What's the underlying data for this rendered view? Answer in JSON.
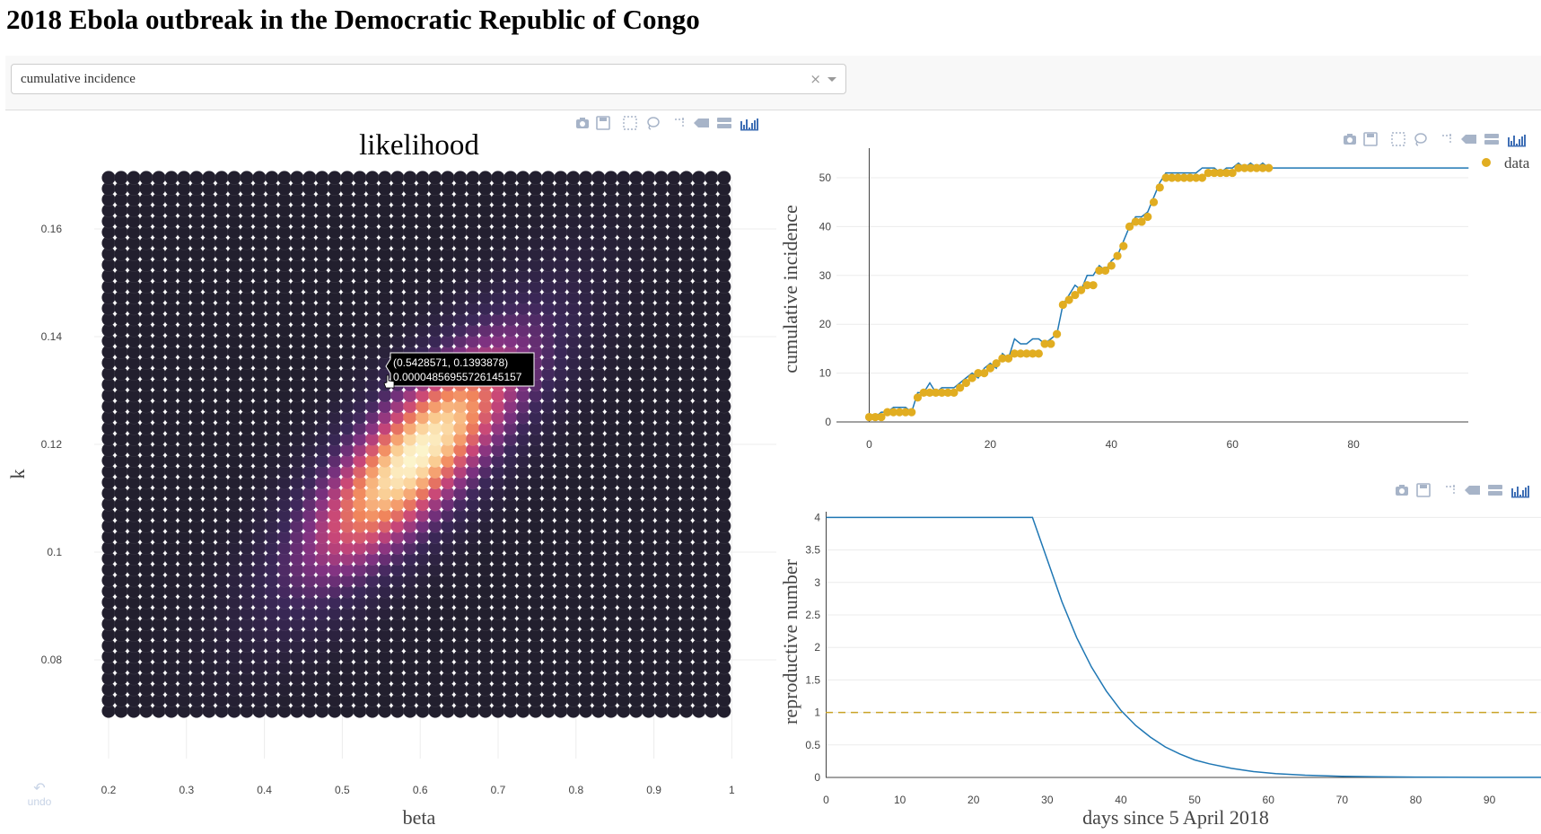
{
  "page": {
    "title": "2018 Ebola outbreak in the Democratic Republic of Congo"
  },
  "dropdown": {
    "value": "cumulative incidence",
    "clear_icon": "clear-icon",
    "arrow_icon": "caret-down-icon"
  },
  "modebar": {
    "icons": [
      "camera-icon",
      "save-icon",
      "box-select-icon",
      "lasso-icon",
      "spike-lines-icon",
      "hover-closest-icon",
      "hover-compare-icon",
      "plotly-logo-icon"
    ]
  },
  "undo": {
    "label": "undo",
    "icon": "undo-icon"
  },
  "colors": {
    "accent_line": "#1f77b4",
    "data_points": "#e1ad21",
    "threshold": "#c9a227",
    "heatmap_low": "#221f2e",
    "heatmap_high": "#fbf3c8"
  },
  "chart_data": [
    {
      "type": "heatmap",
      "title": "likelihood",
      "xlabel": "beta",
      "ylabel": "k",
      "xlim": [
        0.2,
        1
      ],
      "ylim": [
        0.07,
        0.17
      ],
      "x_ticks": [
        "0.2",
        "0.3",
        "0.4",
        "0.5",
        "0.6",
        "0.7",
        "0.8",
        "0.9",
        "1"
      ],
      "y_ticks": [
        "0.08",
        "0.1",
        "0.12",
        "0.14",
        "0.16"
      ],
      "peak": {
        "beta": 0.595,
        "k": 0.118
      },
      "hover": {
        "line1": "(0.5428571, 0.1393878)",
        "line2": "0.00004856955726145157"
      }
    },
    {
      "type": "line",
      "xlabel": "",
      "ylabel": "cumulative incidence",
      "xlim": [
        -5,
        99
      ],
      "ylim": [
        0,
        55
      ],
      "x_ticks": [
        "0",
        "20",
        "40",
        "60",
        "80"
      ],
      "y_ticks": [
        "0",
        "10",
        "20",
        "30",
        "40",
        "50"
      ],
      "legend": {
        "position": "top-right",
        "entries": [
          "data"
        ]
      },
      "series": [
        {
          "name": "data",
          "kind": "scatter",
          "x": [
            0,
            1,
            2,
            3,
            4,
            5,
            6,
            7,
            8,
            9,
            10,
            11,
            12,
            13,
            14,
            15,
            16,
            17,
            18,
            19,
            20,
            21,
            22,
            23,
            24,
            25,
            26,
            27,
            28,
            29,
            30,
            31,
            32,
            33,
            34,
            35,
            36,
            37,
            38,
            39,
            40,
            41,
            42,
            43,
            44,
            45,
            46,
            47,
            48,
            49,
            50,
            51,
            52,
            53,
            54,
            55,
            56,
            57,
            58,
            59,
            60,
            61,
            62,
            63,
            64,
            65,
            66
          ],
          "y": [
            1,
            1,
            1,
            2,
            2,
            2,
            2,
            2,
            5,
            6,
            6,
            6,
            6,
            6,
            6,
            7,
            8,
            9,
            10,
            10,
            11,
            12,
            13,
            13,
            14,
            14,
            14,
            14,
            14,
            16,
            16,
            18,
            24,
            25,
            26,
            27,
            28,
            28,
            31,
            31,
            32,
            34,
            36,
            40,
            41,
            41,
            42,
            45,
            48,
            50,
            50,
            50,
            50,
            50,
            50,
            50,
            51,
            51,
            51,
            51,
            51,
            52,
            52,
            52,
            52,
            52,
            52
          ]
        },
        {
          "name": "",
          "kind": "line",
          "x": [
            0,
            1,
            2,
            3,
            4,
            5,
            6,
            7,
            8,
            9,
            10,
            11,
            12,
            13,
            14,
            15,
            16,
            17,
            18,
            19,
            20,
            21,
            22,
            23,
            24,
            25,
            26,
            27,
            28,
            29,
            30,
            31,
            32,
            33,
            34,
            35,
            36,
            37,
            38,
            39,
            40,
            41,
            42,
            43,
            44,
            45,
            46,
            47,
            48,
            49,
            50,
            51,
            52,
            53,
            54,
            55,
            56,
            57,
            58,
            59,
            60,
            61,
            62,
            63,
            64,
            65,
            66,
            70,
            75,
            80,
            85,
            90,
            95,
            99
          ],
          "y": [
            1,
            1,
            2,
            2,
            3,
            3,
            3,
            2,
            6,
            6,
            8,
            6,
            7,
            7,
            7,
            8,
            9,
            10,
            9,
            11,
            12,
            11,
            14,
            13,
            17,
            16,
            16,
            17,
            17,
            16,
            17,
            18,
            24,
            26,
            28,
            27,
            30,
            30,
            32,
            31,
            33,
            34,
            37,
            40,
            42,
            42,
            43,
            46,
            49,
            51,
            51,
            51,
            51,
            51,
            51,
            52,
            52,
            52,
            51,
            52,
            52,
            53,
            52,
            53,
            52,
            53,
            52,
            52,
            52,
            52,
            52,
            52,
            52,
            52
          ]
        }
      ]
    },
    {
      "type": "line",
      "xlabel": "days since 5 April 2018",
      "ylabel": "reproductive number",
      "xlim": [
        0,
        99
      ],
      "ylim": [
        0,
        4.15
      ],
      "x_ticks": [
        "0",
        "10",
        "20",
        "30",
        "40",
        "50",
        "60",
        "70",
        "80",
        "90"
      ],
      "y_ticks": [
        "0",
        "0.5",
        "1",
        "1.5",
        "2",
        "2.5",
        "3",
        "3.5",
        "4"
      ],
      "series": [
        {
          "name": "",
          "kind": "line",
          "x": [
            0,
            28,
            30,
            32,
            34,
            36,
            38,
            40,
            42,
            44,
            46,
            48,
            50,
            52,
            55,
            58,
            61,
            65,
            70,
            75,
            80,
            85,
            90,
            99
          ],
          "y": [
            4,
            4,
            3.35,
            2.7,
            2.15,
            1.7,
            1.33,
            1.03,
            0.8,
            0.62,
            0.47,
            0.36,
            0.27,
            0.21,
            0.14,
            0.09,
            0.06,
            0.035,
            0.018,
            0.009,
            0.005,
            0.003,
            0.002,
            0.001
          ]
        },
        {
          "name": "",
          "kind": "dashed",
          "x": [
            0,
            99
          ],
          "y": [
            1,
            1
          ]
        }
      ]
    }
  ]
}
